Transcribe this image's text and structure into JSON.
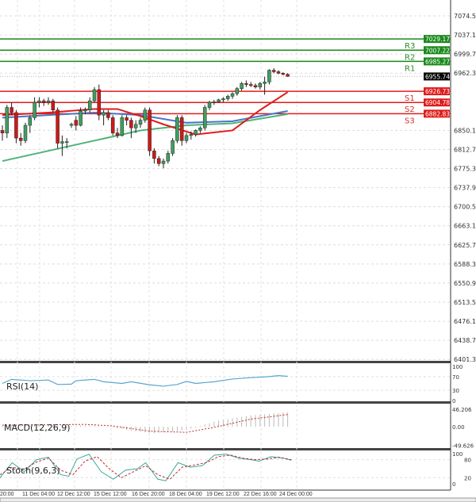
{
  "chart_data": {
    "type": "candlestick",
    "price_axis": {
      "ticks": [
        "7074.50",
        "7037.10",
        "6999.70",
        "6962.30",
        "6850.10",
        "6812.70",
        "6775.30",
        "6737.90",
        "6700.50",
        "6663.10",
        "6625.70",
        "6588.30",
        "6550.90",
        "6513.50",
        "6476.10",
        "6438.70",
        "6401.30"
      ],
      "range": [
        6401.3,
        7074.5
      ]
    },
    "time_labels": [
      "20:00",
      "11 Dec 04:00",
      "12 Dec 12:00",
      "15 Dec 12:00",
      "16 Dec 20:00",
      "18 Dec 04:00",
      "19 Dec 12:00",
      "22 Dec 16:00",
      "24 Dec 00:00"
    ],
    "current_price": {
      "value": 6955.74,
      "label": "6955.74",
      "color": "#000000"
    },
    "levels": [
      {
        "name": "R3",
        "value": 7029.17,
        "label": "7029.17",
        "color": "#1a8a1a"
      },
      {
        "name": "R2",
        "value": 7007.22,
        "label": "7007.22",
        "color": "#1a8a1a"
      },
      {
        "name": "R1",
        "value": 6985.27,
        "label": "6985.27",
        "color": "#1a8a1a"
      },
      {
        "name": "S1",
        "value": 6926.73,
        "label": "6926.73",
        "color": "#e01b1b"
      },
      {
        "name": "S2",
        "value": 6904.78,
        "label": "6904.78",
        "color": "#e01b1b"
      },
      {
        "name": "S3",
        "value": 6882.83,
        "label": "6882.83",
        "color": "#e01b1b"
      }
    ],
    "colors": {
      "up": "#3f9f5f",
      "down": "#d01818",
      "ma_fast": "#e01b1b",
      "ma_mid": "#4a76c8",
      "ma_slow": "#4fb37a",
      "rsi": "#5aa5d0"
    },
    "ohlc": [
      [
        6850,
        6860,
        6830,
        6845
      ],
      [
        6845,
        6900,
        6835,
        6895
      ],
      [
        6895,
        6905,
        6880,
        6885
      ],
      [
        6885,
        6890,
        6825,
        6835
      ],
      [
        6835,
        6845,
        6820,
        6830
      ],
      [
        6830,
        6865,
        6825,
        6860
      ],
      [
        6860,
        6880,
        6845,
        6875
      ],
      [
        6875,
        6915,
        6870,
        6905
      ],
      [
        6905,
        6915,
        6895,
        6908
      ],
      [
        6908,
        6912,
        6898,
        6905
      ],
      [
        6905,
        6915,
        6900,
        6908
      ],
      [
        6908,
        6912,
        6885,
        6890
      ],
      [
        6890,
        6895,
        6815,
        6825
      ],
      [
        6825,
        6840,
        6800,
        6828
      ],
      [
        6828,
        6835,
        6815,
        6828
      ],
      [
        6860,
        6865,
        6855,
        6862
      ],
      [
        6870,
        6878,
        6850,
        6860
      ],
      [
        6860,
        6895,
        6858,
        6888
      ],
      [
        6888,
        6895,
        6882,
        6890
      ],
      [
        6890,
        6915,
        6885,
        6908
      ],
      [
        6908,
        6935,
        6905,
        6930
      ],
      [
        6930,
        6940,
        6870,
        6880
      ],
      [
        6880,
        6890,
        6860,
        6885
      ],
      [
        6885,
        6890,
        6870,
        6875
      ],
      [
        6875,
        6880,
        6840,
        6845
      ],
      [
        6845,
        6855,
        6835,
        6840
      ],
      [
        6840,
        6880,
        6838,
        6875
      ],
      [
        6875,
        6880,
        6860,
        6870
      ],
      [
        6870,
        6875,
        6835,
        6855
      ],
      [
        6855,
        6870,
        6845,
        6862
      ],
      [
        6862,
        6875,
        6855,
        6870
      ],
      [
        6870,
        6895,
        6865,
        6890
      ],
      [
        6890,
        6895,
        6800,
        6810
      ],
      [
        6810,
        6815,
        6785,
        6795
      ],
      [
        6795,
        6800,
        6780,
        6785
      ],
      [
        6785,
        6795,
        6776,
        6790
      ],
      [
        6790,
        6810,
        6785,
        6805
      ],
      [
        6805,
        6835,
        6800,
        6830
      ],
      [
        6830,
        6880,
        6825,
        6875
      ],
      [
        6875,
        6880,
        6820,
        6830
      ],
      [
        6830,
        6845,
        6825,
        6840
      ],
      [
        6840,
        6848,
        6832,
        6842
      ],
      [
        6842,
        6852,
        6838,
        6850
      ],
      [
        6850,
        6858,
        6845,
        6855
      ],
      [
        6855,
        6900,
        6850,
        6895
      ],
      [
        6895,
        6908,
        6890,
        6905
      ],
      [
        6905,
        6910,
        6900,
        6906
      ],
      [
        6906,
        6912,
        6905,
        6910
      ],
      [
        6910,
        6915,
        6906,
        6912
      ],
      [
        6912,
        6920,
        6908,
        6917
      ],
      [
        6917,
        6925,
        6912,
        6922
      ],
      [
        6922,
        6935,
        6918,
        6932
      ],
      [
        6932,
        6945,
        6928,
        6942
      ],
      [
        6942,
        6948,
        6935,
        6940
      ],
      [
        6940,
        6945,
        6935,
        6938
      ],
      [
        6938,
        6942,
        6932,
        6935
      ],
      [
        6935,
        6945,
        6930,
        6942
      ],
      [
        6942,
        6955,
        6920,
        6945
      ],
      [
        6945,
        6970,
        6940,
        6968
      ],
      [
        6968,
        6972,
        6962,
        6965
      ],
      [
        6965,
        6968,
        6960,
        6962
      ],
      [
        6962,
        6964,
        6958,
        6960
      ],
      [
        6960,
        6962,
        6955,
        6956
      ]
    ],
    "ma_fast": [
      [
        0,
        6880
      ],
      [
        10,
        6885
      ],
      [
        20,
        6892
      ],
      [
        25,
        6892
      ],
      [
        30,
        6878
      ],
      [
        35,
        6862
      ],
      [
        42,
        6842
      ],
      [
        50,
        6850
      ],
      [
        56,
        6890
      ],
      [
        62,
        6925
      ]
    ],
    "ma_mid": [
      [
        0,
        6875
      ],
      [
        10,
        6880
      ],
      [
        20,
        6885
      ],
      [
        30,
        6880
      ],
      [
        40,
        6865
      ],
      [
        50,
        6868
      ],
      [
        62,
        6888
      ]
    ],
    "ma_slow": [
      [
        0,
        6790
      ],
      [
        10,
        6810
      ],
      [
        20,
        6830
      ],
      [
        30,
        6850
      ],
      [
        40,
        6860
      ],
      [
        50,
        6864
      ],
      [
        62,
        6882
      ]
    ],
    "rsi": {
      "label": "RSI(14)",
      "ticks": [
        "100",
        "70",
        "30",
        "0"
      ],
      "values": [
        [
          0,
          50
        ],
        [
          2,
          62
        ],
        [
          6,
          58
        ],
        [
          10,
          60
        ],
        [
          12,
          47
        ],
        [
          15,
          48
        ],
        [
          16,
          58
        ],
        [
          20,
          62
        ],
        [
          22,
          55
        ],
        [
          26,
          50
        ],
        [
          28,
          55
        ],
        [
          32,
          46
        ],
        [
          35,
          42
        ],
        [
          38,
          47
        ],
        [
          40,
          56
        ],
        [
          42,
          50
        ],
        [
          46,
          55
        ],
        [
          50,
          63
        ],
        [
          54,
          67
        ],
        [
          58,
          70
        ],
        [
          60,
          73
        ],
        [
          62,
          71
        ]
      ]
    },
    "macd": {
      "label": "MACD(12,26,9)",
      "ticks": [
        "46.206",
        "0.00",
        "-49.626"
      ],
      "histogram": [
        2,
        2,
        3,
        3,
        3,
        2,
        3,
        3,
        4,
        4,
        4,
        4,
        3,
        2,
        2,
        2,
        2,
        3,
        3,
        3,
        3,
        2,
        1,
        0,
        -2,
        -4,
        -6,
        -9,
        -11,
        -13,
        -14,
        -15,
        -16,
        -17,
        -16,
        -15,
        -14,
        -13,
        -12,
        -10,
        -8,
        -5,
        -2,
        2,
        6,
        9,
        13,
        16,
        18,
        20,
        22,
        24,
        26,
        28,
        30,
        31,
        32,
        33,
        34,
        35,
        36,
        37,
        38
      ],
      "signal": [
        [
          0,
          4
        ],
        [
          10,
          5
        ],
        [
          18,
          6
        ],
        [
          24,
          2
        ],
        [
          32,
          -12
        ],
        [
          40,
          -15
        ],
        [
          46,
          -2
        ],
        [
          54,
          20
        ],
        [
          62,
          32
        ]
      ]
    },
    "stoch": {
      "label": "Stoch(9,6,3)",
      "ticks": [
        "100",
        "80",
        "20",
        "0"
      ],
      "k": [
        [
          0,
          20
        ],
        [
          3,
          70
        ],
        [
          6,
          40
        ],
        [
          9,
          80
        ],
        [
          12,
          88
        ],
        [
          15,
          30
        ],
        [
          17,
          25
        ],
        [
          19,
          82
        ],
        [
          22,
          98
        ],
        [
          25,
          40
        ],
        [
          28,
          15
        ],
        [
          31,
          45
        ],
        [
          34,
          50
        ],
        [
          36,
          70
        ],
        [
          39,
          15
        ],
        [
          41,
          10
        ],
        [
          44,
          70
        ],
        [
          47,
          55
        ],
        [
          50,
          60
        ],
        [
          53,
          95
        ],
        [
          56,
          98
        ],
        [
          59,
          85
        ],
        [
          62,
          80
        ],
        [
          64,
          75
        ],
        [
          67,
          90
        ],
        [
          70,
          85
        ],
        [
          72,
          78
        ]
      ],
      "d": [
        [
          0,
          30
        ],
        [
          3,
          55
        ],
        [
          6,
          48
        ],
        [
          9,
          72
        ],
        [
          12,
          85
        ],
        [
          15,
          45
        ],
        [
          18,
          30
        ],
        [
          21,
          75
        ],
        [
          24,
          90
        ],
        [
          27,
          50
        ],
        [
          30,
          20
        ],
        [
          33,
          40
        ],
        [
          36,
          60
        ],
        [
          39,
          30
        ],
        [
          42,
          15
        ],
        [
          45,
          55
        ],
        [
          48,
          62
        ],
        [
          51,
          70
        ],
        [
          54,
          90
        ],
        [
          57,
          95
        ],
        [
          60,
          85
        ],
        [
          63,
          80
        ],
        [
          66,
          82
        ],
        [
          69,
          88
        ],
        [
          72,
          80
        ]
      ]
    }
  }
}
